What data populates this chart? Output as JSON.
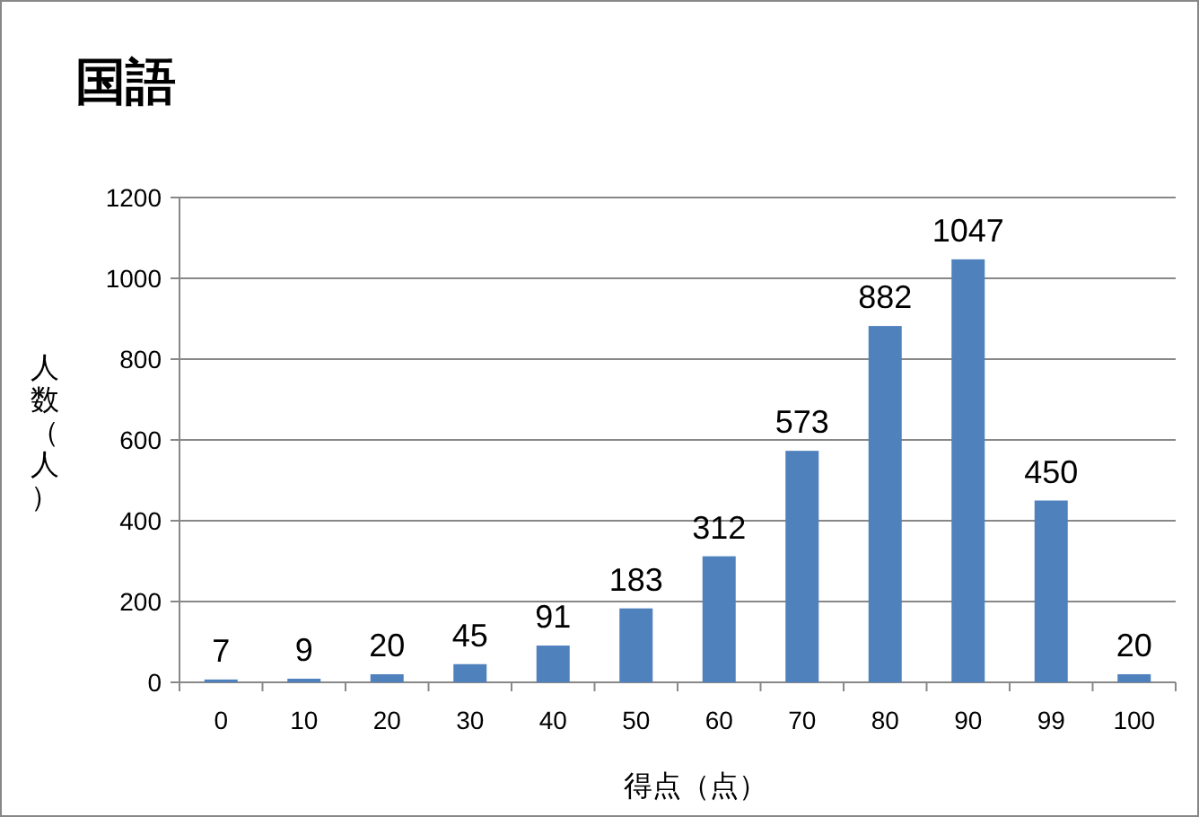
{
  "chart_data": {
    "type": "bar",
    "title": "国語",
    "xlabel": "得点（点）",
    "ylabel": "人数（人）",
    "categories": [
      "0",
      "10",
      "20",
      "30",
      "40",
      "50",
      "60",
      "70",
      "80",
      "90",
      "99",
      "100"
    ],
    "values": [
      7,
      9,
      20,
      45,
      91,
      183,
      312,
      573,
      882,
      1047,
      450,
      20
    ],
    "color": "#4f81bd",
    "ylim": [
      0,
      1200
    ],
    "yticks": [
      0,
      200,
      400,
      600,
      800,
      1000,
      1200
    ],
    "grid": "y",
    "data_labels": true
  }
}
